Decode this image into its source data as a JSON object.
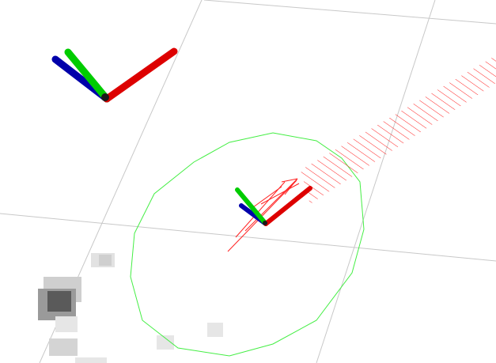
{
  "scene": {
    "background": "#ffffff",
    "grid_color": "#c8c8c8",
    "axis_colors": {
      "x": "#dd0000",
      "y": "#00cc00",
      "z": "#0000aa"
    },
    "footprint_color": "#44ee44",
    "pose_array_color": "#ff2222",
    "costmap_colors": [
      "#5a5a5a",
      "#9a9a9a",
      "#cfcfcf",
      "#e6e6e6"
    ],
    "icons": [
      "axes-frame-icon",
      "robot-footprint-icon",
      "pose-array-icon",
      "costmap-cell-icon"
    ]
  }
}
